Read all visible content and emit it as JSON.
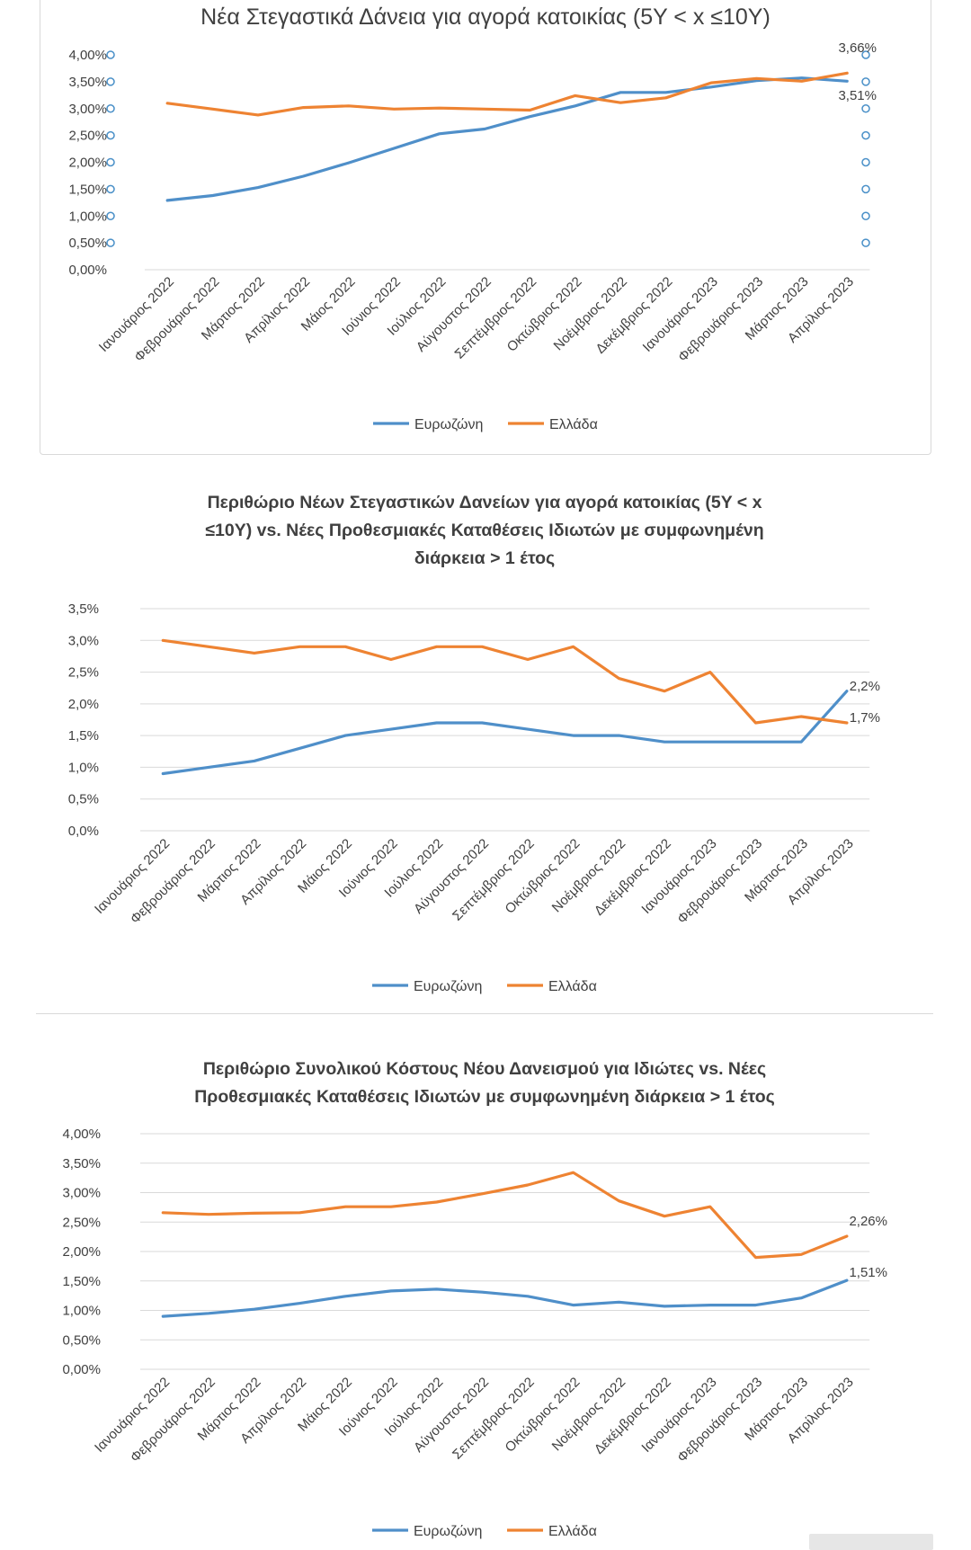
{
  "colors": {
    "eurozone": "#4f8fc9",
    "greece": "#ee8332",
    "grid": "#d9d9d9",
    "text": "#404040"
  },
  "charts": [
    {
      "title_lines": [
        "Νέα Στεγαστικά Δάνεια για αγορά κατοικίας (5Y < x ≤10Y)"
      ],
      "title_bold": false,
      "y_ticks": [
        "0,00%",
        "0,50%",
        "1,00%",
        "1,50%",
        "2,00%",
        "2,50%",
        "3,00%",
        "3,50%",
        "4,00%"
      ],
      "end_labels": {
        "greece": "3,66%",
        "eurozone": "3,51%"
      }
    },
    {
      "title_lines": [
        "Περιθώριο Νέων Στεγαστικών Δανείων για αγορά κατοικίας (5Y < x",
        "≤10Y) vs. Νέες Προθεσμιακές Καταθέσεις Ιδιωτών με συμφωνημένη",
        "διάρκεια > 1 έτος"
      ],
      "title_bold": true,
      "y_ticks": [
        "0,0%",
        "0,5%",
        "1,0%",
        "1,5%",
        "2,0%",
        "2,5%",
        "3,0%",
        "3,5%"
      ],
      "end_labels": {
        "eurozone": "2,2%",
        "greece": "1,7%"
      }
    },
    {
      "title_lines": [
        "Περιθώριο Συνολικού Κόστους Νέου Δανεισμού για Ιδιώτες vs. Νέες",
        "Προθεσμιακές Καταθέσεις Ιδιωτών με συμφωνημένη διάρκεια > 1 έτος"
      ],
      "title_bold": true,
      "y_ticks": [
        "0,00%",
        "0,50%",
        "1,00%",
        "1,50%",
        "2,00%",
        "2,50%",
        "3,00%",
        "3,50%",
        "4,00%"
      ],
      "end_labels": {
        "greece": "2,26%",
        "eurozone": "1,51%"
      }
    }
  ],
  "chart_data": [
    {
      "type": "line",
      "title": "Νέα Στεγαστικά Δάνεια για αγορά κατοικίας (5Y < x ≤10Y)",
      "categories": [
        "Ιανουάριος 2022",
        "Φεβρουάριος 2022",
        "Μάρτιος 2022",
        "Απρίλιος 2022",
        "Μάιος 2022",
        "Ιούνιος 2022",
        "Ιούλιος 2022",
        "Αύγουστος 2022",
        "Σεπτέμβριος 2022",
        "Οκτώβριος 2022",
        "Νοέμβριος 2022",
        "Δεκέμβριος 2022",
        "Ιανουάριος 2023",
        "Φεβρουάριος 2023",
        "Μάρτιος 2023",
        "Απρίλιος 2023"
      ],
      "ylim": [
        0,
        4
      ],
      "series": [
        {
          "name": "Ευρωζώνη",
          "values": [
            1.29,
            1.38,
            1.53,
            1.74,
            1.99,
            2.26,
            2.53,
            2.62,
            2.85,
            3.05,
            3.3,
            3.3,
            3.4,
            3.52,
            3.57,
            3.51
          ]
        },
        {
          "name": "Ελλάδα",
          "values": [
            3.1,
            2.99,
            2.88,
            3.02,
            3.05,
            2.99,
            3.01,
            2.99,
            2.97,
            3.24,
            3.11,
            3.2,
            3.48,
            3.56,
            3.51,
            3.66
          ]
        }
      ],
      "legend": "bottom",
      "grid": false
    },
    {
      "type": "line",
      "title": "Περιθώριο Νέων Στεγαστικών Δανείων για αγορά κατοικίας (5Y < x ≤10Y) vs. Νέες Προθεσμιακές Καταθέσεις Ιδιωτών με συμφωνημένη διάρκεια > 1 έτος",
      "categories": [
        "Ιανουάριος 2022",
        "Φεβρουάριος 2022",
        "Μάρτιος 2022",
        "Απρίλιος 2022",
        "Μάιος 2022",
        "Ιούνιος 2022",
        "Ιούλιος 2022",
        "Αύγουστος 2022",
        "Σεπτέμβριος 2022",
        "Οκτώβριος 2022",
        "Νοέμβριος 2022",
        "Δεκέμβριος 2022",
        "Ιανουάριος 2023",
        "Φεβρουάριος 2023",
        "Μάρτιος 2023",
        "Απρίλιος 2023"
      ],
      "ylim": [
        0,
        3.5
      ],
      "series": [
        {
          "name": "Ευρωζώνη",
          "values": [
            0.9,
            1.0,
            1.1,
            1.3,
            1.5,
            1.6,
            1.7,
            1.7,
            1.6,
            1.5,
            1.5,
            1.4,
            1.4,
            1.4,
            1.4,
            2.2
          ]
        },
        {
          "name": "Ελλάδα",
          "values": [
            3.0,
            2.9,
            2.8,
            2.9,
            2.9,
            2.7,
            2.9,
            2.9,
            2.7,
            2.9,
            2.4,
            2.2,
            2.5,
            1.7,
            1.8,
            1.7
          ]
        }
      ],
      "legend": "bottom",
      "grid": true
    },
    {
      "type": "line",
      "title": "Περιθώριο Συνολικού Κόστους Νέου Δανεισμού για Ιδιώτες vs. Νέες Προθεσμιακές Καταθέσεις Ιδιωτών με συμφωνημένη διάρκεια > 1 έτος",
      "categories": [
        "Ιανουάριος 2022",
        "Φεβρουάριος 2022",
        "Μάρτιος 2022",
        "Απρίλιος 2022",
        "Μάιος 2022",
        "Ιούνιος 2022",
        "Ιούλιος 2022",
        "Αύγουστος 2022",
        "Σεπτέμβριος 2022",
        "Οκτώβριος 2022",
        "Νοέμβριος 2022",
        "Δεκέμβριος 2022",
        "Ιανουάριος 2023",
        "Φεβρουάριος 2023",
        "Μάρτιος 2023",
        "Απρίλιος 2023"
      ],
      "ylim": [
        0,
        4
      ],
      "series": [
        {
          "name": "Ευρωζώνη",
          "values": [
            0.9,
            0.95,
            1.02,
            1.12,
            1.24,
            1.33,
            1.36,
            1.31,
            1.24,
            1.09,
            1.14,
            1.07,
            1.09,
            1.09,
            1.21,
            1.51
          ]
        },
        {
          "name": "Ελλάδα",
          "values": [
            2.66,
            2.63,
            2.65,
            2.66,
            2.76,
            2.76,
            2.84,
            2.98,
            3.13,
            3.34,
            2.86,
            2.6,
            2.76,
            1.9,
            1.95,
            2.26
          ]
        }
      ],
      "legend": "bottom",
      "grid": true
    }
  ]
}
